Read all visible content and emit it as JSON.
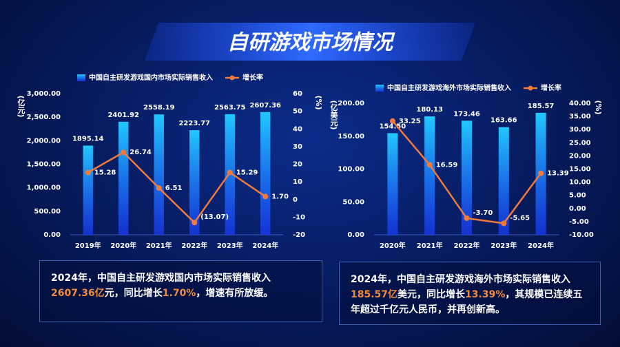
{
  "title": "自研游戏市场情况",
  "chart_data": [
    {
      "type": "bar_line",
      "categories": [
        "2019年",
        "2020年",
        "2021年",
        "2022年",
        "2023年",
        "2024年"
      ],
      "series": [
        {
          "name": "中国自主研发游戏国内市场实际销售收入",
          "type": "bar",
          "color": "#22c8ff",
          "values": [
            1895.14,
            2401.92,
            2558.19,
            2223.77,
            2563.75,
            2607.36
          ]
        },
        {
          "name": "增长率",
          "type": "line",
          "axis": "y2",
          "color": "#f07a3a",
          "values": [
            15.28,
            26.74,
            6.51,
            -13.07,
            15.29,
            1.7
          ],
          "value_labels": [
            "15.28",
            "26.74",
            "6.51",
            "(13.07)",
            "15.29",
            "1.70"
          ]
        }
      ],
      "y_label": "(亿元)",
      "y2_label": "(%)",
      "ylim": [
        0,
        3000
      ],
      "yticks": [
        {
          "value": 0,
          "label": "0.00"
        },
        {
          "value": 500,
          "label": "500.00"
        },
        {
          "value": 1000,
          "label": "1,000.00"
        },
        {
          "value": 1500,
          "label": "1,500.00"
        },
        {
          "value": 2000,
          "label": "2,000.00"
        },
        {
          "value": 2500,
          "label": "2,500.00"
        },
        {
          "value": 3000,
          "label": "3,000.00"
        }
      ],
      "y2lim": [
        -20,
        60
      ],
      "y2ticks": [
        -20,
        -10,
        0,
        10,
        20,
        30,
        40,
        50,
        60
      ]
    },
    {
      "type": "bar_line",
      "categories": [
        "2020年",
        "2021年",
        "2022年",
        "2023年",
        "2024年"
      ],
      "series": [
        {
          "name": "中国自主研发游戏海外市场实际销售收入",
          "type": "bar",
          "color": "#22c8ff",
          "values": [
            154.5,
            180.13,
            173.46,
            163.66,
            185.57
          ],
          "value_labels": [
            "154.50",
            "180.13",
            "173.46",
            "163.66",
            "185.57"
          ]
        },
        {
          "name": "增长率",
          "type": "line",
          "axis": "y2",
          "color": "#f07a3a",
          "values": [
            33.25,
            16.59,
            -3.7,
            -5.65,
            13.39
          ],
          "value_labels": [
            "33.25",
            "16.59",
            "-3.70",
            "-5.65",
            "13.39"
          ]
        }
      ],
      "y_label": "(亿美元)",
      "y2_label": "(%)",
      "ylim": [
        0,
        200
      ],
      "yticks": [
        {
          "value": 0,
          "label": "0.00"
        },
        {
          "value": 50,
          "label": "50.00"
        },
        {
          "value": 100,
          "label": "100.00"
        },
        {
          "value": 150,
          "label": "150.00"
        },
        {
          "value": 200,
          "label": "200.00"
        }
      ],
      "y2lim": [
        -10,
        40
      ],
      "y2ticks": [
        {
          "value": -10,
          "label": "-10.00"
        },
        {
          "value": -5,
          "label": "-5.00"
        },
        {
          "value": 0,
          "label": "0.00"
        },
        {
          "value": 5,
          "label": "5.00"
        },
        {
          "value": 10,
          "label": "10.00"
        },
        {
          "value": 15,
          "label": "15.00"
        },
        {
          "value": 20,
          "label": "20.00"
        },
        {
          "value": 25,
          "label": "25.00"
        },
        {
          "value": 30,
          "label": "30.00"
        },
        {
          "value": 35,
          "label": "35.00"
        },
        {
          "value": 40,
          "label": "40.00"
        }
      ]
    }
  ],
  "summaries": [
    {
      "segments": [
        {
          "text": "2024年，中国自主研发游戏国内市场实际销售收入",
          "color": "#ffffff"
        },
        {
          "text": "2607.36亿",
          "color": "#f28a3c"
        },
        {
          "text": "元，同比增长",
          "color": "#ffffff"
        },
        {
          "text": "1.70%",
          "color": "#f28a3c"
        },
        {
          "text": "，增速有所放缓。",
          "color": "#ffffff"
        }
      ]
    },
    {
      "segments": [
        {
          "text": "2024年，中国自主研发游戏海外市场实际销售收入",
          "color": "#ffffff"
        },
        {
          "text": "185.57亿",
          "color": "#f28a3c"
        },
        {
          "text": "美元，同比增长",
          "color": "#ffffff"
        },
        {
          "text": "13.39%",
          "color": "#f28a3c"
        },
        {
          "text": "，其规模已连续五年超过千亿元人民币，并再创新高。",
          "color": "#ffffff"
        }
      ]
    }
  ]
}
